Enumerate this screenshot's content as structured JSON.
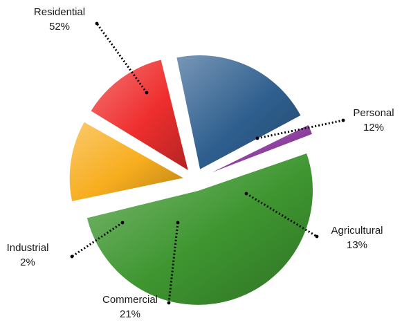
{
  "chart_data": {
    "type": "pie",
    "title": "",
    "exploded": true,
    "slices": [
      {
        "name": "Residential",
        "value": 52,
        "label": "52%",
        "color": "#3e9630"
      },
      {
        "name": "Personal",
        "value": 12,
        "label": "12%",
        "color": "#f7ad1e"
      },
      {
        "name": "Agricultural",
        "value": 13,
        "label": "13%",
        "color": "#ef2e2e"
      },
      {
        "name": "Commercial",
        "value": 21,
        "label": "21%",
        "color": "#2f5f8f"
      },
      {
        "name": "Industrial",
        "value": 2,
        "label": "2%",
        "color": "#8d3f9e"
      }
    ]
  }
}
